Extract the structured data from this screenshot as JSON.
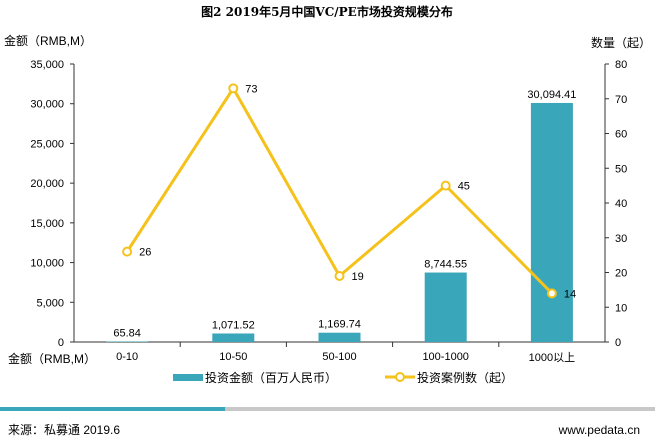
{
  "chart_data": {
    "type": "bar+line",
    "title": "图2 2019年5月中国VC/PE市场投资规模分布",
    "ylabel_left": "金额（RMB,M）",
    "ylabel_right": "数量（起）",
    "xlabel": "金额（RMB,M）",
    "categories": [
      "0-10",
      "10-50",
      "50-100",
      "100-1000",
      "1000以上"
    ],
    "ylim_left": [
      0,
      35000
    ],
    "yticks_left": [
      "0",
      "5,000",
      "10,000",
      "15,000",
      "20,000",
      "25,000",
      "30,000",
      "35,000"
    ],
    "ylim_right": [
      0,
      80
    ],
    "yticks_right": [
      "0",
      "10",
      "20",
      "30",
      "40",
      "50",
      "60",
      "70",
      "80"
    ],
    "series": [
      {
        "name": "投资金额（百万人民币）",
        "type": "bar",
        "axis": "left",
        "values": [
          65.84,
          1071.52,
          1169.74,
          8744.55,
          30094.41
        ],
        "labels": [
          "65.84",
          "1,071.52",
          "1,169.74",
          "8,744.55",
          "30,094.41"
        ],
        "color": "#3aa6b9"
      },
      {
        "name": "投资案例数（起）",
        "type": "line",
        "axis": "right",
        "values": [
          26,
          73,
          19,
          45,
          14
        ],
        "labels": [
          "26",
          "73",
          "19",
          "45",
          "14"
        ],
        "color": "#f5c21b"
      }
    ],
    "legend": "bottom"
  },
  "footer": {
    "source": "来源：私募通 2019.6",
    "website": "www.pedata.cn"
  }
}
